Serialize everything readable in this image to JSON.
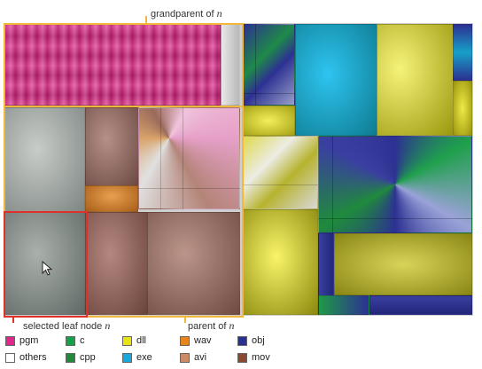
{
  "annotations": {
    "grandparent_label": "grandparent of",
    "parent_label": "parent of",
    "selected_label": "selected leaf node",
    "var": "n"
  },
  "legend": [
    {
      "label": "pgm",
      "color": "#e0288a"
    },
    {
      "label": "c",
      "color": "#17a04a"
    },
    {
      "label": "dll",
      "color": "#e8e410"
    },
    {
      "label": "wav",
      "color": "#e6841e"
    },
    {
      "label": "obj",
      "color": "#2a2f92"
    },
    {
      "label": "others",
      "color": "#ffffff"
    },
    {
      "label": "cpp",
      "color": "#1f8a3c"
    },
    {
      "label": "exe",
      "color": "#18a8dc"
    },
    {
      "label": "avi",
      "color": "#cc8a66"
    },
    {
      "label": "mov",
      "color": "#8a4a32"
    }
  ],
  "colors": {
    "grandparent_border": "#f2b83a",
    "parent_border": "#f2b83a",
    "selected_border": "#e0302a"
  }
}
